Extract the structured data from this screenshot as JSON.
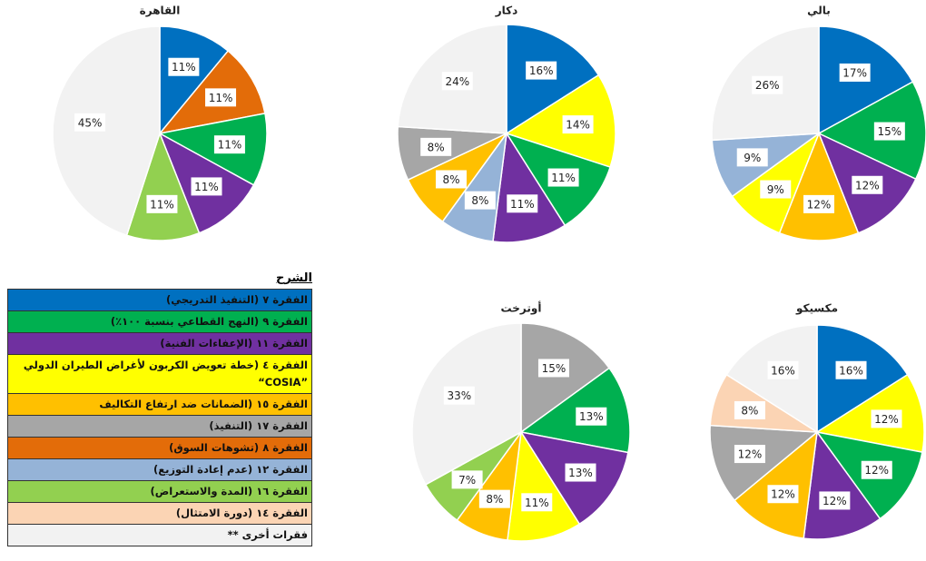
{
  "legend": {
    "title": "الشرح",
    "items": [
      {
        "name": "الفقرة ٧ (التنفيذ التدريجي)",
        "color": "#0070c0"
      },
      {
        "name": "الفقرة ٩ (النهج القطاعي بنسبة ١٠٠٪)",
        "color": "#00b050"
      },
      {
        "name": "الفقرة ١١ (الإعفاءات الفنية)",
        "color": "#7030a0"
      },
      {
        "name": "الفقرة ٤ (خطة تعويض الكربون لأغراض الطيران الدولي ”COSIA“",
        "color": "#ffff00"
      },
      {
        "name": "الفقرة ١٥ (الضمانات ضد ارتفاع التكاليف",
        "color": "#ffc000"
      },
      {
        "name": "الفقرة ١٧ (التنفيذ)",
        "color": "#a6a6a6"
      },
      {
        "name": "الفقرة ٨ (تشوهات السوق)",
        "color": "#e36c09"
      },
      {
        "name": "الفقرة ١٢ (عدم إعادة التوزيع)",
        "color": "#95b3d7"
      },
      {
        "name": "الفقرة ١٦ (المدة والاستعراض)",
        "color": "#92d050"
      },
      {
        "name": "الفقرة ١٤ (دورة الامتثال)",
        "color": "#fbd4b4"
      },
      {
        "name": "فقرات أخرى **",
        "color": "#f2f2f2"
      }
    ]
  },
  "chart_data": [
    {
      "type": "pie",
      "title": "القاهرة",
      "values": [
        11,
        11,
        11,
        11,
        11,
        45
      ],
      "value_labels": [
        "11%",
        "11%",
        "11%",
        "11%",
        "11%",
        "45%"
      ],
      "colors": [
        "#0070c0",
        "#e36c09",
        "#00b050",
        "#7030a0",
        "#92d050",
        "#f2f2f2"
      ]
    },
    {
      "type": "pie",
      "title": "دكار",
      "values": [
        16,
        14,
        11,
        11,
        8,
        8,
        8,
        24
      ],
      "value_labels": [
        "16%",
        "14%",
        "11%",
        "11%",
        "8%",
        "8%",
        "8%",
        "24%"
      ],
      "colors": [
        "#0070c0",
        "#ffff00",
        "#00b050",
        "#7030a0",
        "#95b3d7",
        "#ffc000",
        "#a6a6a6",
        "#f2f2f2"
      ]
    },
    {
      "type": "pie",
      "title": "بالي",
      "values": [
        17,
        15,
        12,
        12,
        9,
        9,
        26
      ],
      "value_labels": [
        "17%",
        "15%",
        "12%",
        "12%",
        "9%",
        "9%",
        "26%"
      ],
      "colors": [
        "#0070c0",
        "#00b050",
        "#7030a0",
        "#ffc000",
        "#ffff00",
        "#95b3d7",
        "#f2f2f2"
      ]
    },
    {
      "type": "pie",
      "title": "أوترخت",
      "values": [
        15,
        13,
        13,
        11,
        8,
        7,
        33
      ],
      "value_labels": [
        "15%",
        "13%",
        "13%",
        "11%",
        "8%",
        "7%",
        "33%"
      ],
      "colors": [
        "#a6a6a6",
        "#00b050",
        "#7030a0",
        "#ffff00",
        "#ffc000",
        "#92d050",
        "#f2f2f2"
      ]
    },
    {
      "type": "pie",
      "title": "مكسيكو",
      "values": [
        16,
        12,
        12,
        12,
        12,
        12,
        8,
        16
      ],
      "value_labels": [
        "16%",
        "12%",
        "12%",
        "12%",
        "12%",
        "12%",
        "8%",
        "16%"
      ],
      "colors": [
        "#0070c0",
        "#ffff00",
        "#00b050",
        "#7030a0",
        "#ffc000",
        "#a6a6a6",
        "#fbd4b4",
        "#f2f2f2"
      ]
    }
  ]
}
